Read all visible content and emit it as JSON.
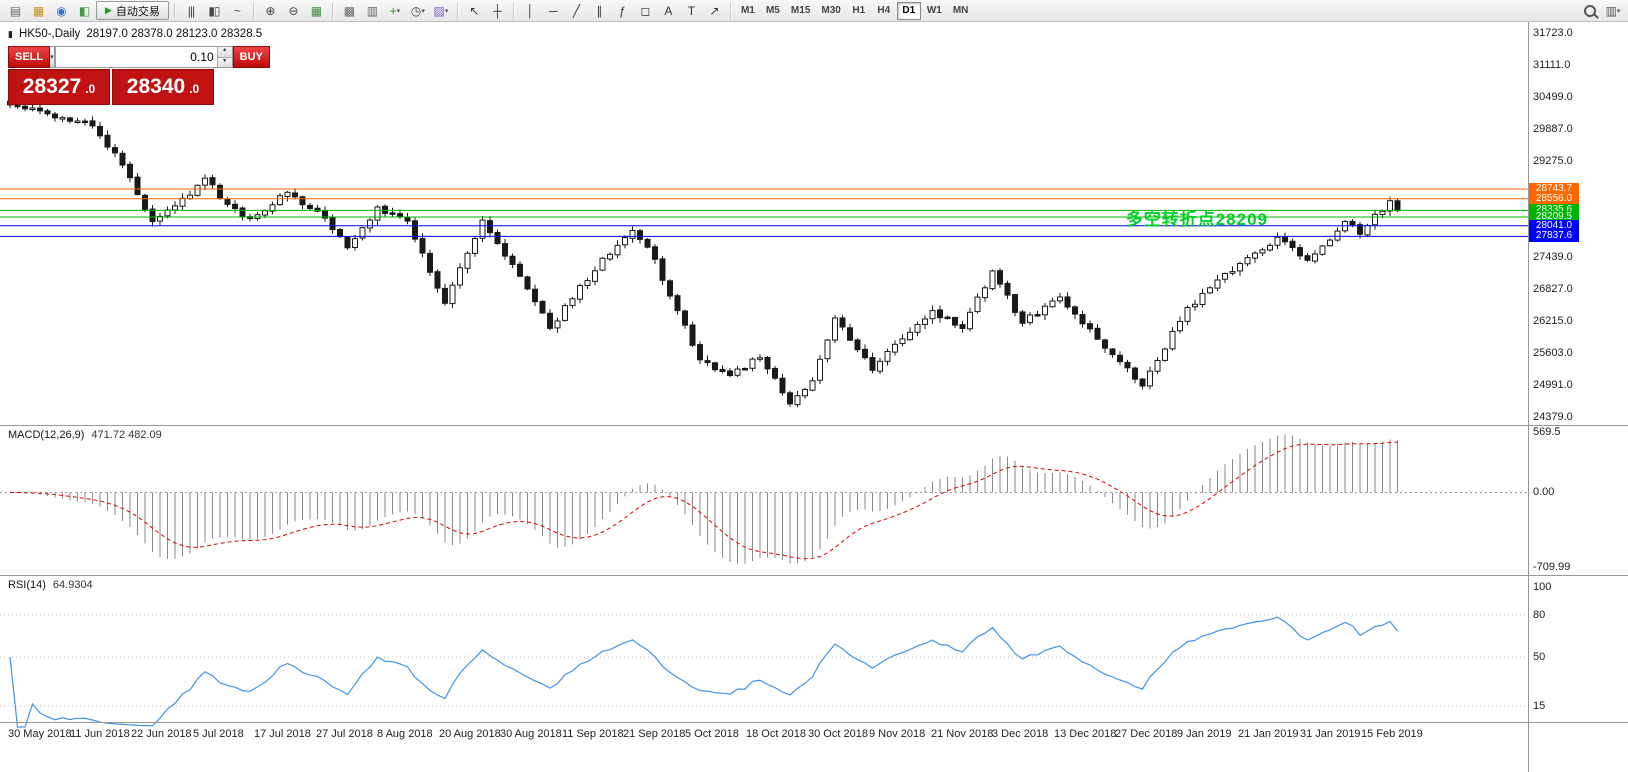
{
  "toolbar": {
    "items": [
      {
        "name": "menu-icon",
        "glyph": "▤",
        "color": "#666"
      },
      {
        "name": "new-chart-icon",
        "glyph": "▦",
        "color": "#c99018"
      },
      {
        "name": "profiles-icon",
        "glyph": "◉",
        "color": "#3a6fd0"
      },
      {
        "name": "data-window-icon",
        "glyph": "◧",
        "color": "#4a9a4a"
      },
      {
        "kind": "button",
        "name": "autotrading-button",
        "glyph": "▶",
        "glyph_color": "#18a018",
        "label": "自动交易"
      },
      {
        "kind": "sep"
      },
      {
        "name": "bar-chart-icon",
        "glyph": "|||",
        "color": "#444"
      },
      {
        "name": "candlestick-chart-icon",
        "glyph": "▮▯",
        "color": "#444"
      },
      {
        "name": "line-chart-icon",
        "glyph": "~",
        "color": "#444"
      },
      {
        "kind": "sep"
      },
      {
        "name": "zoom-in-icon",
        "glyph": "⊕",
        "color": "#444"
      },
      {
        "name": "zoom-out-icon",
        "glyph": "⊖",
        "color": "#444"
      },
      {
        "name": "tile-windows-icon",
        "glyph": "▦",
        "color": "#3d8b3d"
      },
      {
        "kind": "sep"
      },
      {
        "name": "cascade-windows-icon",
        "glyph": "▩",
        "color": "#666"
      },
      {
        "name": "arrange-windows-icon",
        "glyph": "▥",
        "color": "#666"
      },
      {
        "name": "indicators-icon",
        "glyph": "+",
        "color": "#18a018",
        "caret": true
      },
      {
        "name": "periods-icon",
        "glyph": "◷",
        "color": "#444",
        "caret": true
      },
      {
        "name": "templates-icon",
        "glyph": "▨",
        "color": "#7a5ac0",
        "caret": true
      },
      {
        "kind": "sep"
      },
      {
        "name": "cursor-icon",
        "glyph": "↖",
        "color": "#333"
      },
      {
        "name": "crosshair-icon",
        "glyph": "┼",
        "color": "#333"
      },
      {
        "kind": "sep"
      },
      {
        "name": "vertical-line-icon",
        "glyph": "│",
        "color": "#333"
      },
      {
        "name": "horizontal-line-icon",
        "glyph": "─",
        "color": "#333"
      },
      {
        "name": "trendline-icon",
        "glyph": "╱",
        "color": "#333"
      },
      {
        "name": "channel-icon",
        "glyph": "∥",
        "color": "#333"
      },
      {
        "name": "fibonacci-icon",
        "glyph": "ƒ",
        "color": "#333"
      },
      {
        "name": "shapes-icon",
        "glyph": "◻",
        "color": "#333"
      },
      {
        "name": "text-icon",
        "glyph": "A",
        "color": "#333"
      },
      {
        "name": "label-icon",
        "glyph": "T",
        "color": "#333"
      },
      {
        "name": "arrows-icon",
        "glyph": "↗",
        "color": "#333"
      },
      {
        "kind": "sep"
      },
      {
        "kind": "tf",
        "label": "M1"
      },
      {
        "kind": "tf",
        "label": "M5"
      },
      {
        "kind": "tf",
        "label": "M15"
      },
      {
        "kind": "tf",
        "label": "M30"
      },
      {
        "kind": "tf",
        "label": "H1"
      },
      {
        "kind": "tf",
        "label": "H4"
      },
      {
        "kind": "tf",
        "label": "D1",
        "active": true
      },
      {
        "kind": "tf",
        "label": "W1"
      },
      {
        "kind": "tf",
        "label": "MN"
      },
      {
        "kind": "spacer"
      },
      {
        "kind": "magnifier",
        "name": "search-icon"
      },
      {
        "name": "chart-shift-icon",
        "glyph": "▥",
        "color": "#555",
        "caret": true
      }
    ]
  },
  "chart_title": {
    "icon": "▮",
    "symbol_period": "HK50-,Daily",
    "ohlc": "28197.0 28378.0 28123.0 28328.5"
  },
  "trade_panel": {
    "sell_label": "SELL",
    "buy_label": "BUY",
    "volume": "0.10",
    "dropdown_glyph": "▾",
    "spin_up": "▴",
    "spin_down": "▾",
    "sell_price_main": "28327",
    "sell_price_frac": ".0",
    "buy_price_main": "28340",
    "buy_price_frac": ".0"
  },
  "annotation": {
    "text": "多空转折点28209",
    "color": "#00cf28"
  },
  "price_axis": {
    "labels": [
      "31723.0",
      "31111.0",
      "30499.0",
      "29887.0",
      "29275.0",
      "28663.0",
      "28051.0",
      "27439.0",
      "26827.0",
      "26215.0",
      "25603.0",
      "24991.0",
      "24379.0"
    ]
  },
  "indicators": {
    "macd": {
      "name": "MACD(12,26,9)",
      "values": "471.72 482.09",
      "axis_labels": [
        "569.5",
        "0.00",
        "-709.99"
      ]
    },
    "rsi": {
      "name": "RSI(14)",
      "value": "64.9304",
      "axis_labels": [
        "100",
        "80",
        "50",
        "15"
      ]
    }
  },
  "time_axis": {
    "dates": [
      "30 May 2018",
      "11 Jun 2018",
      "22 Jun 2018",
      "5 Jul 2018",
      "17 Jul 2018",
      "27 Jul 2018",
      "8 Aug 2018",
      "20 Aug 2018",
      "30 Aug 2018",
      "11 Sep 2018",
      "21 Sep 2018",
      "5 Oct 2018",
      "18 Oct 2018",
      "30 Oct 2018",
      "9 Nov 2018",
      "21 Nov 2018",
      "3 Dec 2018",
      "13 Dec 2018",
      "27 Dec 2018",
      "9 Jan 2019",
      "21 Jan 2019",
      "31 Jan 2019",
      "15 Feb 2019"
    ]
  },
  "chart_data": {
    "type": "candlestick",
    "symbol": "HK50",
    "timeframe": "Daily",
    "ohlc_display": {
      "open": 28197.0,
      "high": 28378.0,
      "low": 28123.0,
      "close": 28328.5
    },
    "bid": 28327.0,
    "ask": 28340.0,
    "price_axis_range": [
      24379.0,
      31723.0
    ],
    "candle_count": 186,
    "close_anchors": [
      [
        0,
        30350
      ],
      [
        5,
        30180
      ],
      [
        11,
        29950
      ],
      [
        15,
        29200
      ],
      [
        19,
        28120
      ],
      [
        22,
        28420
      ],
      [
        26,
        28950
      ],
      [
        29,
        28450
      ],
      [
        32,
        28180
      ],
      [
        37,
        28680
      ],
      [
        41,
        28320
      ],
      [
        45,
        27620
      ],
      [
        49,
        28400
      ],
      [
        53,
        28130
      ],
      [
        58,
        26560
      ],
      [
        63,
        28150
      ],
      [
        67,
        27300
      ],
      [
        72,
        26080
      ],
      [
        79,
        27420
      ],
      [
        83,
        27950
      ],
      [
        86,
        27400
      ],
      [
        88,
        26700
      ],
      [
        92,
        25480
      ],
      [
        96,
        25180
      ],
      [
        100,
        25520
      ],
      [
        104,
        24640
      ],
      [
        107,
        25080
      ],
      [
        110,
        26280
      ],
      [
        115,
        25280
      ],
      [
        119,
        25880
      ],
      [
        123,
        26420
      ],
      [
        127,
        26080
      ],
      [
        131,
        27180
      ],
      [
        135,
        26180
      ],
      [
        140,
        26680
      ],
      [
        147,
        25580
      ],
      [
        151,
        24980
      ],
      [
        157,
        26480
      ],
      [
        164,
        27320
      ],
      [
        169,
        27820
      ],
      [
        173,
        27380
      ],
      [
        178,
        28120
      ],
      [
        180,
        27880
      ],
      [
        184,
        28520
      ],
      [
        185,
        28328.5
      ]
    ],
    "hlines": [
      {
        "price": 28743.7,
        "label": "28743.7",
        "color": "#ff6600"
      },
      {
        "price": 28556.0,
        "label": "28556.0",
        "color": "#ff6600"
      },
      {
        "price": 28335.6,
        "label": "28335.6",
        "color": "#00b400"
      },
      {
        "price": 28209.5,
        "label": "28209.5",
        "color": "#00b400"
      },
      {
        "price": 28041.0,
        "label": "28041.0",
        "color": "#0000ff"
      },
      {
        "price": 27837.6,
        "label": "27837.6",
        "color": "#0000ff"
      }
    ],
    "macd": {
      "fast": 12,
      "slow": 26,
      "signal": 9,
      "last_main": 471.72,
      "last_signal": 482.09,
      "axis": [
        569.5,
        0.0,
        -709.99
      ]
    },
    "rsi": {
      "period": 14,
      "last": 64.9304,
      "levels": [
        80,
        50,
        15
      ]
    }
  }
}
